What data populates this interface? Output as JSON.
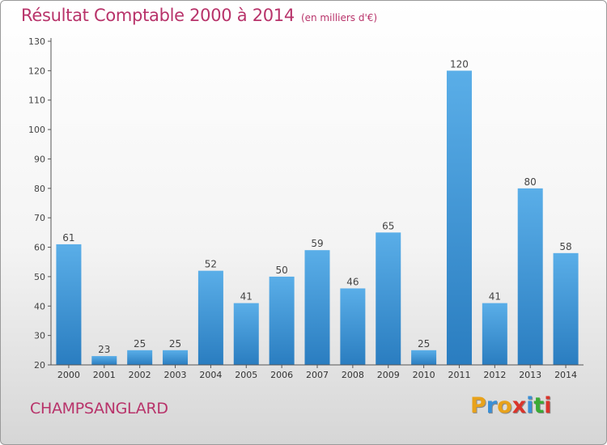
{
  "title": "Résultat Comptable 2000 à 2014",
  "subtitle": "(en milliers d'€)",
  "commune": "CHAMPSANGLARD",
  "logo": {
    "letters": [
      "P",
      "r",
      "o",
      "x",
      "i",
      "t",
      "i"
    ],
    "colors": [
      "#e8a21b",
      "#3a8fd6",
      "#e8a21b",
      "#d9342b",
      "#3a8fd6",
      "#3aaa35",
      "#d9342b"
    ]
  },
  "colors": {
    "bar_light": "#5aaee8",
    "bar_dark": "#2a7dc0",
    "title": "#b8336a"
  },
  "chart_data": {
    "type": "bar",
    "categories": [
      "2000",
      "2001",
      "2002",
      "2003",
      "2004",
      "2005",
      "2006",
      "2007",
      "2008",
      "2009",
      "2010",
      "2011",
      "2012",
      "2013",
      "2014"
    ],
    "values": [
      61,
      23,
      25,
      25,
      52,
      41,
      50,
      59,
      46,
      65,
      25,
      120,
      41,
      80,
      58
    ],
    "title": "Résultat Comptable 2000 à 2014",
    "subtitle": "(en milliers d'€)",
    "xlabel": "",
    "ylabel": "",
    "ylim": [
      20,
      130
    ],
    "yticks": [
      20,
      30,
      40,
      50,
      60,
      70,
      80,
      90,
      100,
      110,
      120,
      130
    ],
    "grid": false,
    "data_labels": true
  }
}
